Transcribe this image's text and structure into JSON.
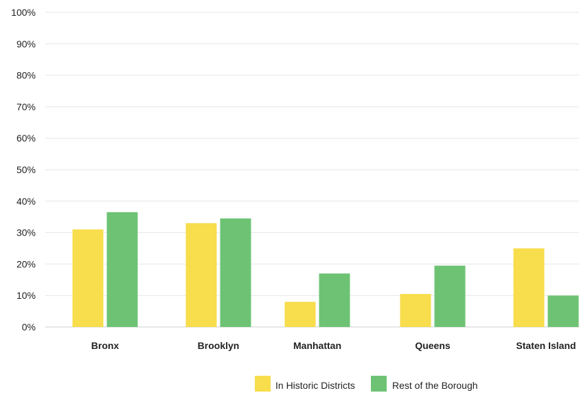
{
  "chart_data": {
    "type": "bar",
    "categories": [
      "Bronx",
      "Brooklyn",
      "Manhattan",
      "Queens",
      "Staten Island"
    ],
    "series": [
      {
        "name": "In Historic Districts",
        "color": "#F8DD4C",
        "values": [
          31,
          33,
          8,
          10.5,
          25
        ]
      },
      {
        "name": "Rest of the Borough",
        "color": "#6DC373",
        "values": [
          36.5,
          34.5,
          17,
          19.5,
          10
        ]
      }
    ],
    "ylim": [
      0,
      100
    ],
    "yticks": [
      "0%",
      "10%",
      "20%",
      "30%",
      "40%",
      "50%",
      "60%",
      "70%",
      "80%",
      "90%",
      "100%"
    ],
    "grid": true,
    "legend_position": "bottom-center",
    "xlabel": "",
    "ylabel": ""
  }
}
